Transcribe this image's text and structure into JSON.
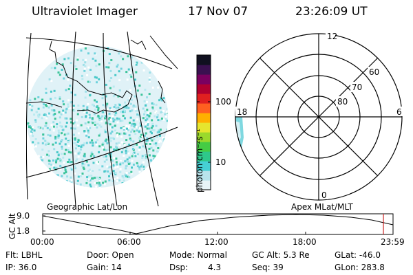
{
  "header": {
    "instrument": "Ultraviolet Imager",
    "date": "17 Nov 07",
    "time": "23:26:09 UT"
  },
  "colorbar": {
    "unit_label": "photon cm⁻²s⁻¹",
    "ticks": [
      "100",
      "10"
    ],
    "colors": [
      "#e8f4f8",
      "#b8e4ec",
      "#46d0d4",
      "#2ec88a",
      "#44cc44",
      "#9ad92c",
      "#e6e62e",
      "#ffb000",
      "#ff6020",
      "#e02020",
      "#b00030",
      "#7a0060",
      "#3a1050",
      "#101020"
    ]
  },
  "polar_plot": {
    "labels": {
      "top": "12",
      "left": "18",
      "right": "6",
      "bottom": "0"
    },
    "ring_labels": [
      "60",
      "70",
      "80"
    ]
  },
  "maps": {
    "left_caption": "Geographic Lat/Lon",
    "right_caption": "Apex MLat/MLT"
  },
  "altitude_plot": {
    "ylabel": "GC Alt",
    "yticks": [
      "9.0",
      "1.8"
    ],
    "xticks": [
      "00:00",
      "06:00",
      "12:00",
      "18:00",
      "23:59"
    ]
  },
  "status": {
    "flt": "Flt: LBHL",
    "ip": "IP: 36.0",
    "door": "Door: Open",
    "gain": "Gain: 14",
    "mode": "Mode: Normal",
    "dsp_label": "Dsp:",
    "dsp_value": "4.3",
    "gc_alt": "GC Alt: 5.3 Re",
    "seq": "Seq: 39",
    "glat": "GLat: -46.0",
    "glon": "GLon: 283.8"
  }
}
